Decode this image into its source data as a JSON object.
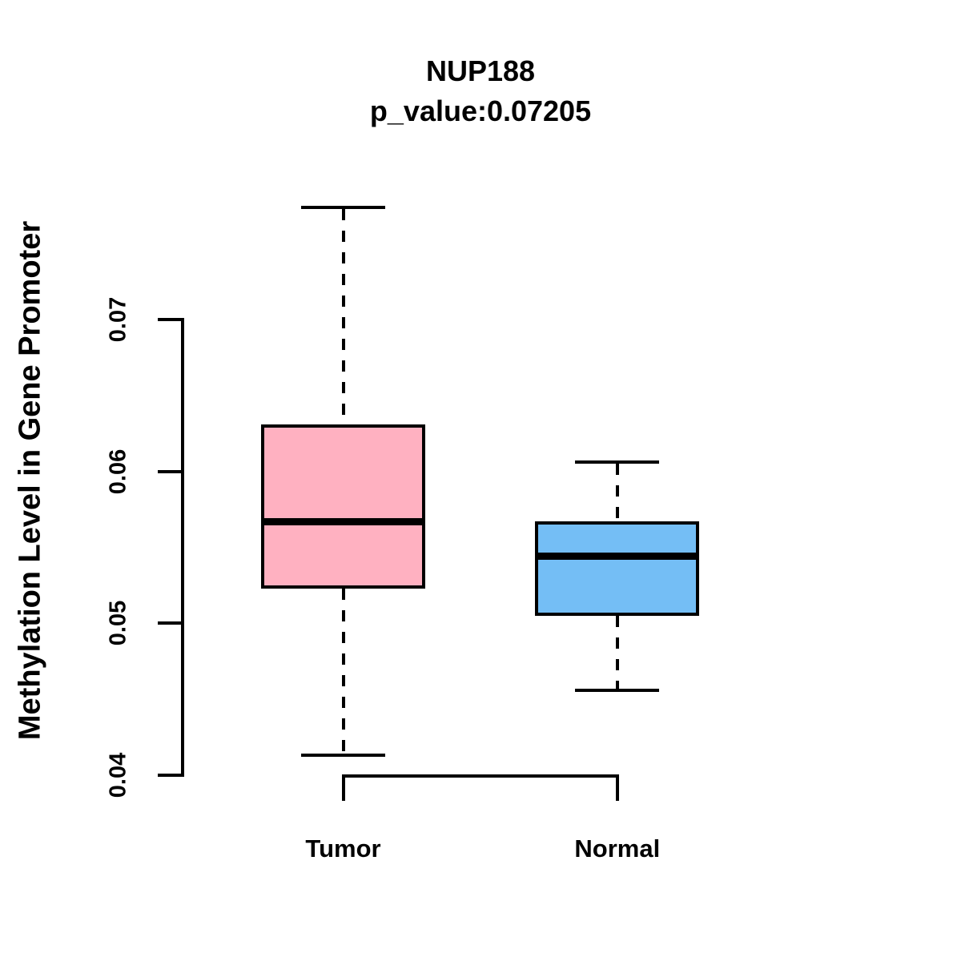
{
  "chart_data": {
    "type": "boxplot",
    "title": "NUP188",
    "subtitle": "p_value:0.07205",
    "ylabel": "Methylation Level in Gene Promoter",
    "xlabel": "",
    "y_ticks": [
      0.04,
      0.05,
      0.06,
      0.07
    ],
    "y_tick_labels": [
      "0.04",
      "0.05",
      "0.06",
      "0.07"
    ],
    "ylim": [
      0.038,
      0.079
    ],
    "categories": [
      "Tumor",
      "Normal"
    ],
    "series": [
      {
        "name": "Tumor",
        "fill_color": "#FFB1C1",
        "lower_whisker": 0.0413,
        "q1": 0.0524,
        "median": 0.0567,
        "q3": 0.063,
        "upper_whisker": 0.0774
      },
      {
        "name": "Normal",
        "fill_color": "#74BEF5",
        "lower_whisker": 0.0456,
        "q1": 0.0506,
        "median": 0.0544,
        "q3": 0.0566,
        "upper_whisker": 0.0606
      }
    ],
    "line_color": "#000000",
    "background_color": "#FFFFFF",
    "grid": false,
    "legend": false
  }
}
